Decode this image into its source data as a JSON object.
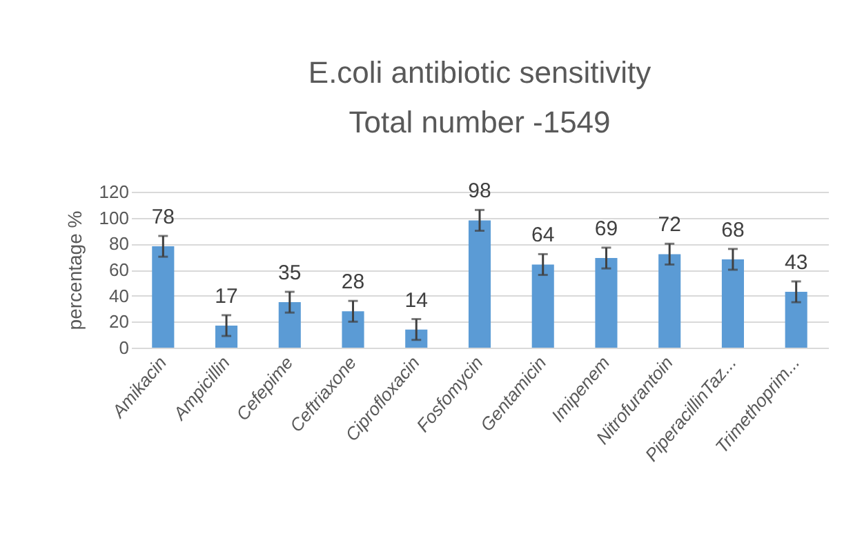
{
  "chart_data": {
    "type": "bar",
    "title": "E.coli antibiotic sensitivity",
    "subtitle": "Total number -1549",
    "ylabel": "percentage %",
    "categories": [
      "Amikacin",
      "Ampicillin",
      "Cefepime",
      "Ceftriaxone",
      "Ciprofloxacin",
      "Fosfomycin",
      "Gentamicin",
      "Imipenem",
      "Nitrofurantoin",
      "PiperacillinTaz...",
      "Trimethoprim..."
    ],
    "values": [
      78,
      17,
      35,
      28,
      14,
      98,
      64,
      69,
      72,
      68,
      43
    ],
    "errors": [
      8,
      8,
      8,
      8,
      8,
      8,
      8,
      8,
      8,
      8,
      8
    ],
    "color": "#5b9bd5",
    "ylim": [
      0,
      120
    ],
    "yticks": [
      0,
      20,
      40,
      60,
      80,
      100,
      120
    ],
    "grid": "y",
    "data_labels": true
  }
}
